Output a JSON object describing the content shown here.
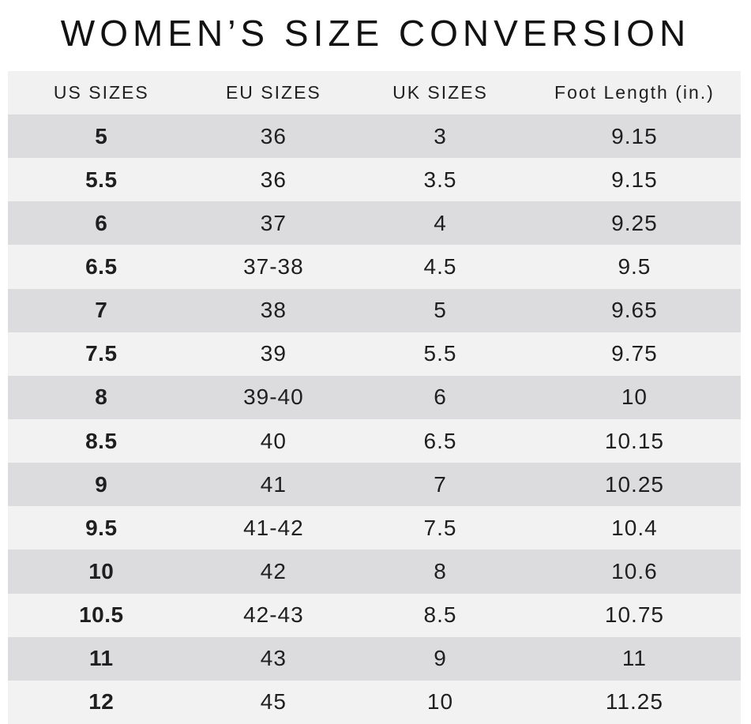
{
  "page": {
    "title": "WOMEN’S SIZE CONVERSION"
  },
  "colors": {
    "background": "#ffffff",
    "header_bg": "#f1f1f1",
    "row_dark": "#dcdcde",
    "row_light": "#f2f2f3",
    "text": "#1f1f1f",
    "title_color": "#121212"
  },
  "chart_data": {
    "type": "table",
    "title": "WOMEN’S SIZE CONVERSION",
    "columns": [
      "US SIZES",
      "EU SIZES",
      "UK SIZES",
      "Foot Length (in.)"
    ],
    "rows": [
      [
        "5",
        "36",
        "3",
        "9.15"
      ],
      [
        "5.5",
        "36",
        "3.5",
        "9.15"
      ],
      [
        "6",
        "37",
        "4",
        "9.25"
      ],
      [
        "6.5",
        "37-38",
        "4.5",
        "9.5"
      ],
      [
        "7",
        "38",
        "5",
        "9.65"
      ],
      [
        "7.5",
        "39",
        "5.5",
        "9.75"
      ],
      [
        "8",
        "39-40",
        "6",
        "10"
      ],
      [
        "8.5",
        "40",
        "6.5",
        "10.15"
      ],
      [
        "9",
        "41",
        "7",
        "10.25"
      ],
      [
        "9.5",
        "41-42",
        "7.5",
        "10.4"
      ],
      [
        "10",
        "42",
        "8",
        "10.6"
      ],
      [
        "10.5",
        "42-43",
        "8.5",
        "10.75"
      ],
      [
        "11",
        "43",
        "9",
        "11"
      ],
      [
        "12",
        "45",
        "10",
        "11.25"
      ]
    ],
    "layout": {
      "row_striping": [
        "dark",
        "light"
      ],
      "us_sizes_column_bold": true,
      "all_cells_centered": true
    }
  }
}
